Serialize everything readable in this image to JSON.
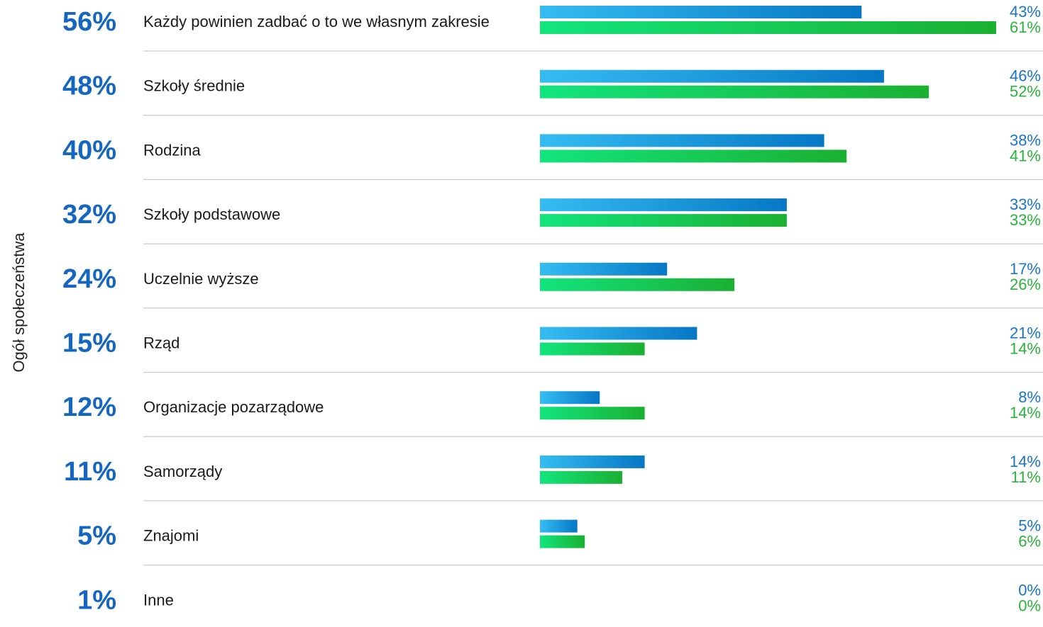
{
  "chart_data": {
    "type": "bar",
    "side_label": "Ogół społeczeństwa",
    "categories": [
      "Każdy powinien zadbać o to we własnym zakresie",
      "Szkoły średnie",
      "Rodzina",
      "Szkoły podstawowe",
      "Uczelnie wyższe",
      "Rząd",
      "Organizacje pozarządowe",
      "Samorządy",
      "Znajomi",
      "Inne"
    ],
    "totals": [
      56,
      48,
      40,
      32,
      24,
      15,
      12,
      11,
      5,
      1
    ],
    "total_labels": [
      "56%",
      "48%",
      "40%",
      "32%",
      "24%",
      "15%",
      "12%",
      "11%",
      "5%",
      "1%"
    ],
    "series": [
      {
        "color": "#1a74c6",
        "gradient": [
          "#35bdf2",
          "#0677c4"
        ],
        "values": [
          43,
          46,
          38,
          33,
          17,
          21,
          8,
          14,
          5,
          0
        ],
        "labels": [
          "43%",
          "46%",
          "38%",
          "33%",
          "17%",
          "21%",
          "8%",
          "14%",
          "5%",
          "0%"
        ]
      },
      {
        "color": "#2ab33a",
        "gradient": [
          "#12e57e",
          "#1ab031"
        ],
        "values": [
          61,
          52,
          41,
          33,
          26,
          14,
          14,
          11,
          6,
          0
        ],
        "labels": [
          "61%",
          "52%",
          "41%",
          "33%",
          "26%",
          "14%",
          "14%",
          "11%",
          "6%",
          "0%"
        ]
      }
    ],
    "xlim": [
      0,
      61
    ],
    "total_color": "#1566c0",
    "separator_color": "#cccccc",
    "legend": "none",
    "grid": false
  }
}
